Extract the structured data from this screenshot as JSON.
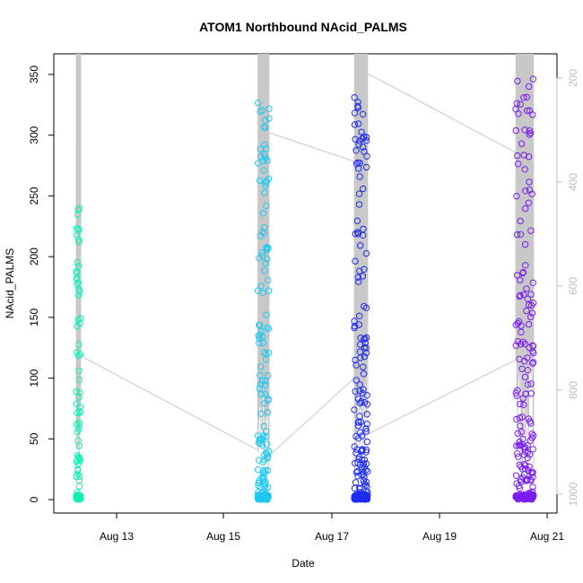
{
  "chart_data": {
    "type": "scatter",
    "title": "ATOM1 Northbound NAcid_PALMS",
    "xlabel": "Date",
    "ylabel": "NAcid_PALMS",
    "x_ticks": [
      "Aug 13",
      "Aug 15",
      "Aug 17",
      "Aug 19",
      "Aug 21"
    ],
    "y_ticks": [
      "0",
      "50",
      "100",
      "150",
      "200",
      "250",
      "300",
      "350"
    ],
    "y_right_ticks": [
      "200",
      "400",
      "600",
      "800",
      "1000"
    ],
    "ylim": [
      0,
      365
    ],
    "y_right_range": [
      1000,
      200
    ],
    "grid": false,
    "legend": "none",
    "colors": {
      "flight1": "#12f0b4",
      "flight2": "#1ec8f0",
      "flight3": "#1e2df0",
      "flight4": "#7a1ef0",
      "altitude_line": "#c8c8c8"
    },
    "flights": [
      {
        "x_range": [
          "Aug 12 06:00",
          "Aug 12 08:00"
        ],
        "y_min": 0,
        "y_max": 241
      },
      {
        "x_range": [
          "Aug 15 15:00",
          "Aug 15 20:00"
        ],
        "y_min": 0,
        "y_max": 327
      },
      {
        "x_range": [
          "Aug 17 10:00",
          "Aug 17 16:00"
        ],
        "y_min": 0,
        "y_max": 333
      },
      {
        "x_range": [
          "Aug 20 10:00",
          "Aug 20 18:00"
        ],
        "y_min": 0,
        "y_max": 354
      }
    ]
  }
}
